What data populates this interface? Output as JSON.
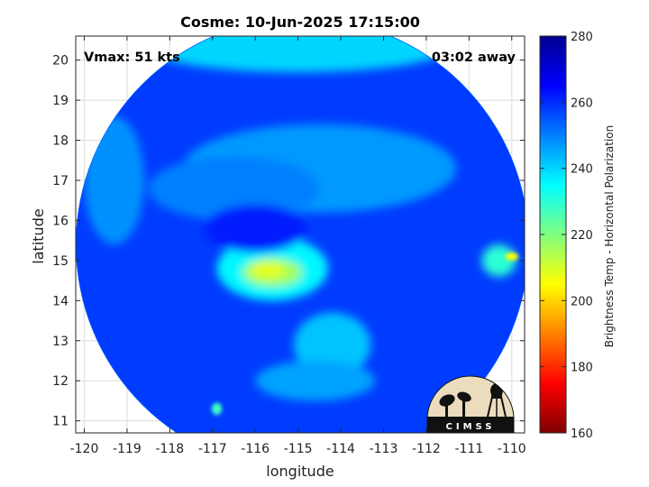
{
  "chart_data": {
    "type": "heatmap",
    "title": "Cosme: 10-Jun-2025 17:15:00",
    "xlabel": "longitude",
    "ylabel": "latitude",
    "xlim": [
      -120.2,
      -109.7
    ],
    "ylim": [
      10.7,
      20.6
    ],
    "xticks": [
      "-120",
      "-119",
      "-118",
      "-117",
      "-116",
      "-115",
      "-114",
      "-113",
      "-112",
      "-111",
      "-110"
    ],
    "yticks": [
      "11",
      "12",
      "13",
      "14",
      "15",
      "16",
      "17",
      "18",
      "19",
      "20"
    ],
    "annotations": {
      "vmax": "Vmax: 51 kts",
      "time_away": "03:02 away"
    },
    "colorbar": {
      "label": "Brightness Temp - Horizontal Polarization",
      "range": [
        160,
        280
      ],
      "ticks": [
        "280",
        "260",
        "240",
        "220",
        "200",
        "180",
        "160"
      ],
      "colormap": [
        "#7f0000",
        "#ff0000",
        "#ff8000",
        "#ffff00",
        "#80ff80",
        "#00ffff",
        "#0080ff",
        "#0000ff",
        "#00008f"
      ]
    },
    "swath": {
      "center_lon": -114.9,
      "center_lat": 15.4,
      "radius_deg": 5.3
    },
    "background_tb": 258,
    "features": [
      {
        "name": "cloud-band-north",
        "lon": -114.5,
        "lat": 17.3,
        "rx": 3.2,
        "ry": 1.1,
        "tb": 247
      },
      {
        "name": "cloud-band-north-2",
        "lon": -116.5,
        "lat": 16.8,
        "rx": 2.0,
        "ry": 0.8,
        "tb": 250
      },
      {
        "name": "swath-edge-north",
        "lon": -115.0,
        "lat": 20.3,
        "rx": 3.5,
        "ry": 0.6,
        "tb": 240
      },
      {
        "name": "west-edge-cloud",
        "lon": -119.3,
        "lat": 17.0,
        "rx": 0.7,
        "ry": 1.6,
        "tb": 248
      },
      {
        "name": "outer-ring",
        "lon": -115.6,
        "lat": 14.8,
        "rx": 1.3,
        "ry": 0.8,
        "tb": 236
      },
      {
        "name": "inner-core",
        "lon": -115.6,
        "lat": 14.7,
        "rx": 0.7,
        "ry": 0.35,
        "tb": 216
      },
      {
        "name": "core-peak",
        "lon": -115.7,
        "lat": 14.75,
        "rx": 0.4,
        "ry": 0.2,
        "tb": 208
      },
      {
        "name": "spiral-band-south",
        "lon": -114.2,
        "lat": 12.9,
        "rx": 0.9,
        "ry": 0.8,
        "tb": 242
      },
      {
        "name": "spiral-band-tail",
        "lon": -114.6,
        "lat": 12.0,
        "rx": 1.4,
        "ry": 0.5,
        "tb": 246
      },
      {
        "name": "convection-east",
        "lon": -110.3,
        "lat": 15.0,
        "rx": 0.4,
        "ry": 0.4,
        "tb": 230
      },
      {
        "name": "east-hotspot",
        "lon": -110.0,
        "lat": 15.1,
        "rx": 0.15,
        "ry": 0.1,
        "tb": 205
      },
      {
        "name": "sw-hotspot",
        "lon": -116.9,
        "lat": 11.3,
        "rx": 0.12,
        "ry": 0.15,
        "tb": 228
      },
      {
        "name": "eye-clear",
        "lon": -116.0,
        "lat": 15.8,
        "rx": 1.2,
        "ry": 0.6,
        "tb": 262
      }
    ],
    "logo": {
      "text": "CIMSS"
    }
  }
}
